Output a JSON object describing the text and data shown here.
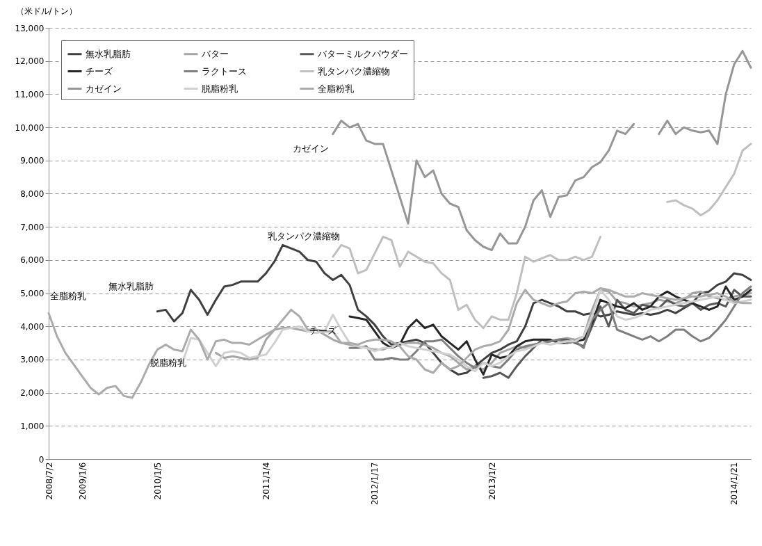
{
  "chart_data": {
    "type": "line",
    "ylabel": "（米ドル/トン）",
    "categories": [
      "2008/7/2",
      null,
      null,
      null,
      "2009/1/6",
      null,
      null,
      null,
      null,
      null,
      null,
      null,
      null,
      "2010/1/5",
      null,
      null,
      null,
      null,
      null,
      null,
      null,
      null,
      null,
      null,
      null,
      null,
      "2011/1/4",
      null,
      null,
      null,
      null,
      null,
      null,
      null,
      null,
      null,
      null,
      null,
      null,
      "2012/1/17",
      null,
      null,
      null,
      null,
      null,
      null,
      null,
      null,
      null,
      null,
      null,
      null,
      null,
      "2013/1/2",
      null,
      null,
      null,
      null,
      null,
      null,
      null,
      null,
      null,
      null,
      null,
      null,
      null,
      null,
      null,
      null,
      null,
      null,
      null,
      null,
      null,
      null,
      null,
      null,
      null,
      null,
      null,
      null,
      "2014/1/21",
      null,
      null
    ],
    "ylim": [
      0,
      13000
    ],
    "yticks": [
      {
        "value": 0,
        "label": "0"
      },
      {
        "value": 1000,
        "label": "1,000"
      },
      {
        "value": 2000,
        "label": "2,000"
      },
      {
        "value": 3000,
        "label": "3,000"
      },
      {
        "value": 4000,
        "label": "4,000"
      },
      {
        "value": 5000,
        "label": "5,000"
      },
      {
        "value": 6000,
        "label": "6,000"
      },
      {
        "value": 7000,
        "label": "7,000"
      },
      {
        "value": 8000,
        "label": "8,000"
      },
      {
        "value": 9000,
        "label": "9,000"
      },
      {
        "value": 10000,
        "label": "10,000"
      },
      {
        "value": 11000,
        "label": "11,000"
      },
      {
        "value": 12000,
        "label": "12,000"
      },
      {
        "value": 13000,
        "label": "13,000"
      }
    ],
    "grid": "y",
    "legend": "top left",
    "line_style": "solid",
    "marker": "none",
    "annotations": [
      "全脂粉乳",
      "無水乳脂肪",
      "脱脂粉乳",
      "乳タンパク濃縮物",
      "チーズ",
      "カゼイン"
    ],
    "series": [
      {
        "name": "無水乳脂肪",
        "color": "#404040",
        "values": [
          null,
          null,
          null,
          null,
          null,
          null,
          null,
          null,
          null,
          null,
          null,
          null,
          null,
          4450,
          4500,
          4150,
          4400,
          5100,
          4800,
          4350,
          4800,
          5200,
          5250,
          5350,
          5350,
          5350,
          5600,
          5950,
          6450,
          6350,
          6250,
          6000,
          5950,
          5600,
          5400,
          5550,
          5250,
          4500,
          4300,
          4050,
          3700,
          3450,
          3500,
          3550,
          3600,
          3500,
          3200,
          2900,
          2700,
          2550,
          2600,
          2800,
          3000,
          3200,
          3300,
          3450,
          3550,
          4000,
          4700,
          4800,
          4700,
          4600,
          4450,
          4450,
          4350,
          4400,
          4300,
          4350,
          4450,
          4400,
          4350,
          4400,
          4350,
          4400,
          4500,
          4400,
          4550,
          4700,
          5000,
          5050,
          5250,
          5350,
          5600,
          5550,
          5400
        ]
      },
      {
        "name": "バター",
        "color": "#a6a6a6",
        "values": [
          null,
          null,
          null,
          null,
          null,
          null,
          null,
          null,
          null,
          null,
          null,
          null,
          null,
          null,
          null,
          null,
          null,
          null,
          null,
          null,
          3200,
          3050,
          3100,
          3050,
          3000,
          3050,
          3600,
          3900,
          3950,
          3950,
          3900,
          3850,
          3900,
          3750,
          3600,
          3500,
          3450,
          3400,
          3350,
          3300,
          3300,
          3400,
          3450,
          3500,
          3500,
          3450,
          3350,
          3200,
          3100,
          2900,
          2700,
          2800,
          2700,
          2900,
          3200,
          3300,
          3400,
          3350,
          3450,
          3500,
          3550,
          3600,
          3650,
          3600,
          3700,
          4500,
          5100,
          5050,
          4750,
          4700,
          4600,
          4650,
          4700,
          4800,
          4750,
          4700,
          4800,
          5000,
          5050,
          4900,
          4850,
          4800,
          4900,
          4950,
          5000
        ]
      },
      {
        "name": "バターミルクパウダー",
        "color": "#595959",
        "values": [
          null,
          null,
          null,
          null,
          null,
          null,
          null,
          null,
          null,
          null,
          null,
          null,
          null,
          null,
          null,
          null,
          null,
          null,
          null,
          null,
          null,
          null,
          null,
          null,
          null,
          null,
          null,
          null,
          null,
          null,
          null,
          null,
          null,
          null,
          null,
          null,
          null,
          null,
          null,
          null,
          null,
          null,
          null,
          null,
          null,
          null,
          null,
          null,
          null,
          null,
          null,
          null,
          2450,
          2500,
          2600,
          2450,
          2800,
          3100,
          3350,
          3600,
          3550,
          3600,
          3600,
          3500,
          3400,
          4000,
          4600,
          4000,
          4800,
          4500,
          4400,
          4650,
          4600,
          4550,
          4800,
          4650,
          4600,
          4700,
          4500,
          4650,
          4700,
          4600,
          5100,
          4900,
          4900
        ]
      },
      {
        "name": "チーズ",
        "color": "#262626",
        "values": [
          null,
          null,
          null,
          null,
          null,
          null,
          null,
          null,
          null,
          null,
          null,
          null,
          null,
          null,
          null,
          null,
          null,
          null,
          null,
          null,
          null,
          null,
          null,
          null,
          null,
          null,
          null,
          null,
          null,
          null,
          null,
          null,
          null,
          null,
          null,
          null,
          4300,
          4250,
          4200,
          3850,
          3500,
          3350,
          3450,
          3950,
          4200,
          3950,
          4050,
          3700,
          3500,
          3300,
          3550,
          3000,
          2550,
          3150,
          3050,
          3100,
          3400,
          3550,
          3600,
          3600,
          3600,
          3500,
          3500,
          3550,
          3600,
          4100,
          4800,
          4700,
          4600,
          4550,
          4700,
          4500,
          4600,
          4900,
          5050,
          4900,
          4800,
          4700,
          4600,
          4500,
          4600,
          5200,
          4800,
          4900,
          5100
        ]
      },
      {
        "name": "ラクトース",
        "color": "#7f7f7f",
        "values": [
          null,
          null,
          null,
          null,
          null,
          null,
          null,
          null,
          null,
          null,
          null,
          null,
          null,
          null,
          null,
          null,
          null,
          null,
          null,
          null,
          null,
          null,
          null,
          null,
          null,
          null,
          null,
          null,
          null,
          null,
          null,
          null,
          null,
          null,
          null,
          null,
          3350,
          3350,
          3400,
          3000,
          3000,
          3050,
          3000,
          3000,
          3250,
          3550,
          3550,
          3600,
          3350,
          3100,
          2900,
          2750,
          2900,
          2800,
          2750,
          3000,
          3300,
          3400,
          3450,
          3500,
          3550,
          3600,
          3500,
          3550,
          3350,
          4200,
          4500,
          4700,
          3900,
          3800,
          3700,
          3600,
          3700,
          3550,
          3700,
          3900,
          3900,
          3700,
          3550,
          3650,
          3900,
          4200,
          4600,
          5000,
          5200
        ]
      },
      {
        "name": "乳タンパク濃縮物",
        "color": "#bfbfbf",
        "values": [
          null,
          null,
          null,
          null,
          null,
          null,
          null,
          null,
          null,
          null,
          null,
          null,
          null,
          null,
          null,
          null,
          null,
          null,
          null,
          null,
          null,
          null,
          null,
          null,
          null,
          null,
          null,
          null,
          null,
          null,
          null,
          null,
          null,
          null,
          6100,
          6450,
          6350,
          5600,
          5700,
          6200,
          6700,
          6600,
          5800,
          6250,
          6100,
          5950,
          5900,
          5600,
          5400,
          4500,
          4650,
          4200,
          3950,
          4300,
          4200,
          4200,
          5000,
          6100,
          5950,
          6050,
          6150,
          6000,
          6000,
          6100,
          6000,
          6100,
          6700,
          null,
          null,
          null,
          null,
          null,
          null,
          null,
          7750,
          7800,
          7650,
          7550,
          7350,
          7500,
          7800,
          8200,
          8600,
          9300,
          9500
        ]
      },
      {
        "name": "カゼイン",
        "color": "#969696",
        "values": [
          null,
          null,
          null,
          null,
          null,
          null,
          null,
          null,
          null,
          null,
          null,
          null,
          null,
          null,
          null,
          null,
          null,
          null,
          null,
          null,
          null,
          null,
          null,
          null,
          null,
          null,
          null,
          null,
          null,
          null,
          null,
          null,
          null,
          null,
          9800,
          10200,
          10000,
          10100,
          9600,
          9500,
          9500,
          8700,
          7900,
          7100,
          9000,
          8500,
          8700,
          8000,
          7700,
          7600,
          6900,
          6600,
          6400,
          6300,
          6800,
          6500,
          6500,
          7000,
          7800,
          8100,
          7300,
          7900,
          7950,
          8400,
          8500,
          8800,
          8950,
          9300,
          9900,
          9800,
          10100,
          null,
          null,
          9800,
          10200,
          9800,
          10000,
          9900,
          9850,
          9900,
          9500,
          11000,
          11900,
          12300,
          11800
        ]
      },
      {
        "name": "脱脂粉乳",
        "color": "#d0d0d0",
        "values": [
          null,
          null,
          null,
          null,
          null,
          null,
          null,
          null,
          null,
          null,
          null,
          null,
          null,
          null,
          null,
          null,
          2900,
          3650,
          3600,
          3200,
          2800,
          3200,
          3250,
          3200,
          3050,
          3100,
          3150,
          3500,
          3900,
          3950,
          4000,
          3850,
          3800,
          3850,
          4350,
          3900,
          3500,
          3400,
          3350,
          3250,
          3350,
          3350,
          3500,
          3400,
          3350,
          3300,
          3250,
          3200,
          3150,
          3000,
          2800,
          2650,
          2900,
          2800,
          2900,
          3100,
          3250,
          3300,
          3400,
          3500,
          3450,
          3500,
          3550,
          3550,
          3700,
          4300,
          5100,
          4800,
          4300,
          4200,
          4250,
          4350,
          4500,
          4550,
          4600,
          4650,
          4700,
          4750,
          4800,
          4850,
          4900,
          4800,
          4700,
          4750,
          4800
        ]
      },
      {
        "name": "全脂粉乳",
        "color": "#ababab",
        "values": [
          4400,
          3700,
          3200,
          2850,
          2500,
          2150,
          1950,
          2150,
          2200,
          1900,
          1850,
          2300,
          2850,
          3300,
          3450,
          3300,
          3250,
          3900,
          3600,
          3000,
          3550,
          3600,
          3500,
          3500,
          3450,
          3600,
          3750,
          3900,
          4200,
          4500,
          4300,
          3900,
          3900,
          3850,
          3850,
          3500,
          3500,
          3450,
          3550,
          3600,
          3600,
          3550,
          3400,
          3100,
          3000,
          2700,
          2600,
          2900,
          2700,
          2800,
          3050,
          3300,
          3400,
          3450,
          3550,
          3900,
          4700,
          5100,
          4800,
          4700,
          4600,
          4700,
          4750,
          5000,
          5050,
          5000,
          5150,
          5100,
          5000,
          4900,
          4900,
          5000,
          4950,
          4900,
          4850,
          4800,
          4850,
          4900,
          4900,
          4950,
          5000,
          4900,
          4750,
          4700,
          4700
        ]
      }
    ]
  }
}
